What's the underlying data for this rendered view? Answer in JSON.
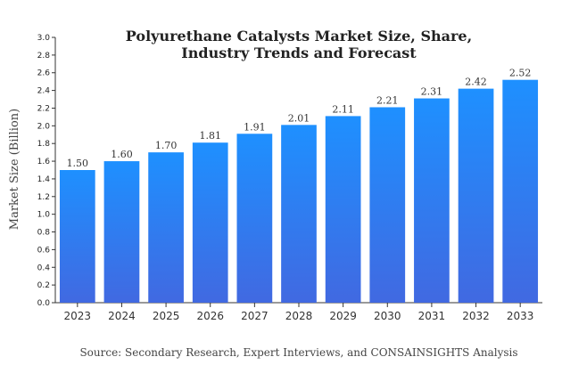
{
  "chart_data": {
    "type": "bar",
    "title_lines": [
      "Polyurethane Catalysts Market Size, Share,",
      "Industry Trends and Forecast"
    ],
    "xlabel": "",
    "ylabel": "Market Size (Billion)",
    "categories": [
      "2023",
      "2024",
      "2025",
      "2026",
      "2027",
      "2028",
      "2029",
      "2030",
      "2031",
      "2032",
      "2033"
    ],
    "values": [
      1.5,
      1.6,
      1.7,
      1.81,
      1.91,
      2.01,
      2.11,
      2.21,
      2.31,
      2.42,
      2.52
    ],
    "data_labels": [
      "1.50",
      "1.60",
      "1.70",
      "1.81",
      "1.91",
      "2.01",
      "2.11",
      "2.21",
      "2.31",
      "2.42",
      "2.52"
    ],
    "ylim": [
      0,
      3.0
    ],
    "y_ticks": [
      "0.0",
      "0.2",
      "0.4",
      "0.6",
      "0.8",
      "1.0",
      "1.2",
      "1.4",
      "1.6",
      "1.8",
      "2.0",
      "2.2",
      "2.4",
      "2.6",
      "2.8",
      "3.0"
    ],
    "grid": false,
    "legend": "none",
    "source": "Source: Secondary Research, Expert Interviews, and CONSAINSIGHTS Analysis",
    "colors": {
      "bar_top": "#1e90ff",
      "bar_bottom": "#4169e1",
      "axis": "#333333",
      "text": "#222222"
    }
  }
}
